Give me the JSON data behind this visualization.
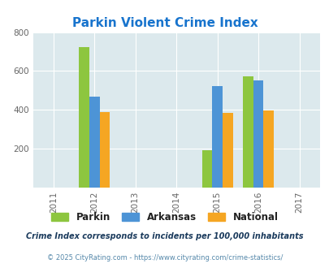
{
  "title": "Parkin Violent Crime Index",
  "title_color": "#1874cd",
  "years": [
    2011,
    2012,
    2013,
    2014,
    2015,
    2016,
    2017
  ],
  "bar_years": [
    2012,
    2015,
    2016
  ],
  "parkin": [
    725,
    193,
    572
  ],
  "arkansas": [
    470,
    522,
    553
  ],
  "national": [
    387,
    383,
    398
  ],
  "parkin_color": "#8dc63f",
  "arkansas_color": "#4d94d6",
  "national_color": "#f5a623",
  "ylim": [
    0,
    800
  ],
  "yticks": [
    0,
    200,
    400,
    600,
    800
  ],
  "bg_color": "#dce9ed",
  "legend_labels": [
    "Parkin",
    "Arkansas",
    "National"
  ],
  "footnote1": "Crime Index corresponds to incidents per 100,000 inhabitants",
  "footnote2": "© 2025 CityRating.com - https://www.cityrating.com/crime-statistics/",
  "footnote1_color": "#1a3a5c",
  "footnote2_color": "#5588aa",
  "bar_width": 0.25
}
